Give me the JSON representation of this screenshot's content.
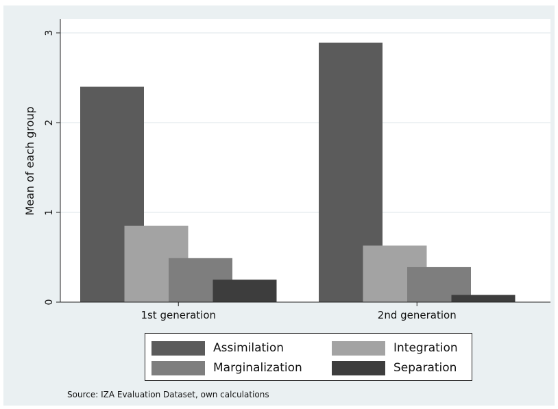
{
  "chart_data": {
    "type": "bar",
    "categories": [
      "1st generation",
      "2nd generation"
    ],
    "series": [
      {
        "name": "Assimilation",
        "values": [
          2.4,
          2.89
        ],
        "color": "#5b5b5b"
      },
      {
        "name": "Integration",
        "values": [
          0.85,
          0.63
        ],
        "color": "#a3a3a3"
      },
      {
        "name": "Marginalization",
        "values": [
          0.49,
          0.39
        ],
        "color": "#7e7e7e"
      },
      {
        "name": "Separation",
        "values": [
          0.25,
          0.08
        ],
        "color": "#3d3d3d"
      }
    ],
    "ylabel": "Mean of each group",
    "xlabel": "",
    "ylim": [
      0,
      3.15
    ],
    "yticks": [
      0,
      1,
      2,
      3
    ],
    "grid": true,
    "legend_position": "bottom"
  },
  "note": "Source: IZA Evaluation Dataset, own calculations"
}
